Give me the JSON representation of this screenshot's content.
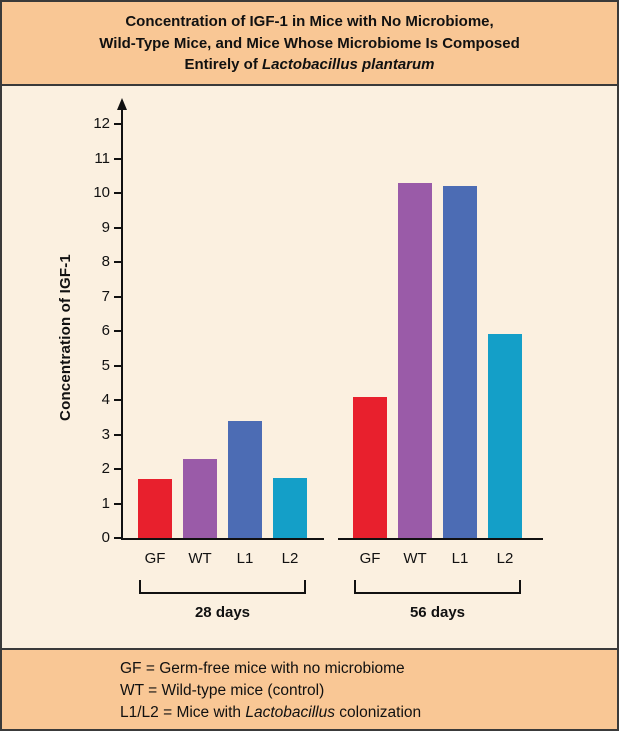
{
  "header": {
    "title_line1": "Concentration of IGF-1 in Mice with No Microbiome,",
    "title_line2": "Wild-Type Mice, and Mice Whose Microbiome Is Composed",
    "title_line3_prefix": "Entirely of ",
    "title_line3_italic": "Lactobacillus plantarum"
  },
  "legend": {
    "line1": "GF = Germ-free mice with no microbiome",
    "line2": "WT = Wild-type mice (control)",
    "line3_prefix": "L1/L2 = Mice with ",
    "line3_italic": "Lactobacillus",
    "line3_suffix": " colonization"
  },
  "chart_data": {
    "type": "bar",
    "title": "Concentration of IGF-1 in Mice with No Microbiome, Wild-Type Mice, and Mice Whose Microbiome Is Composed Entirely of Lactobacillus plantarum",
    "xlabel": "",
    "ylabel": "Concentration of IGF-1",
    "ylim": [
      0,
      12
    ],
    "yticks": [
      0,
      1,
      2,
      3,
      4,
      5,
      6,
      7,
      8,
      9,
      10,
      11,
      12
    ],
    "grid": false,
    "legend_position": "none",
    "categories": [
      "GF",
      "WT",
      "L1",
      "L2"
    ],
    "category_colors": [
      "#e8202d",
      "#9a5ba8",
      "#4c6cb4",
      "#149fc8"
    ],
    "groups": [
      {
        "label": "28 days",
        "values": [
          1.7,
          2.3,
          3.4,
          1.75
        ]
      },
      {
        "label": "56 days",
        "values": [
          4.1,
          10.3,
          10.2,
          5.9
        ]
      }
    ]
  }
}
